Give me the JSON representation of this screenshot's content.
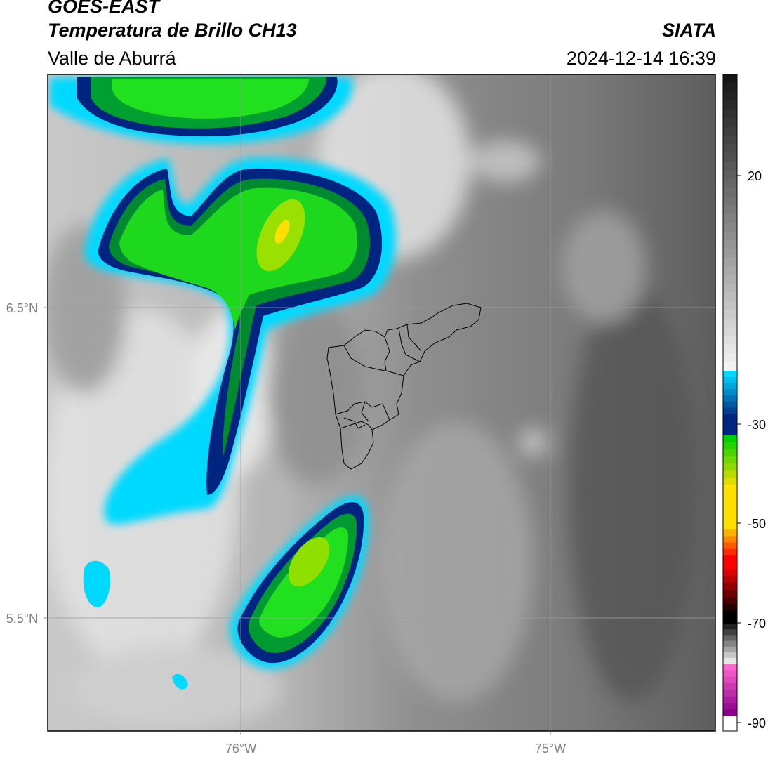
{
  "header": {
    "satellite": "GOES-EAST",
    "product": "Temperatura de Brillo CH13",
    "region": "Valle de Aburrá",
    "agency": "SIATA",
    "datetime": "2024-12-14 16:39"
  },
  "map": {
    "lat_labels": [
      "6.5°N",
      "5.5°N"
    ],
    "lon_labels": [
      "76°W",
      "75°W"
    ],
    "grid": true
  },
  "colorbar": {
    "ticks": [
      "20",
      "-30",
      "-50",
      "-70",
      "-90"
    ],
    "colors": {
      "warm_top": "#161616",
      "warm_bottom": "#f2f2f2",
      "cyan": "#00d9ff",
      "blue": "#002580",
      "green": "#00d000",
      "yellow": "#ffe000",
      "red": "#ff0000",
      "black": "#000000",
      "pink": "#ff66cc",
      "purple": "#8a008a"
    }
  }
}
